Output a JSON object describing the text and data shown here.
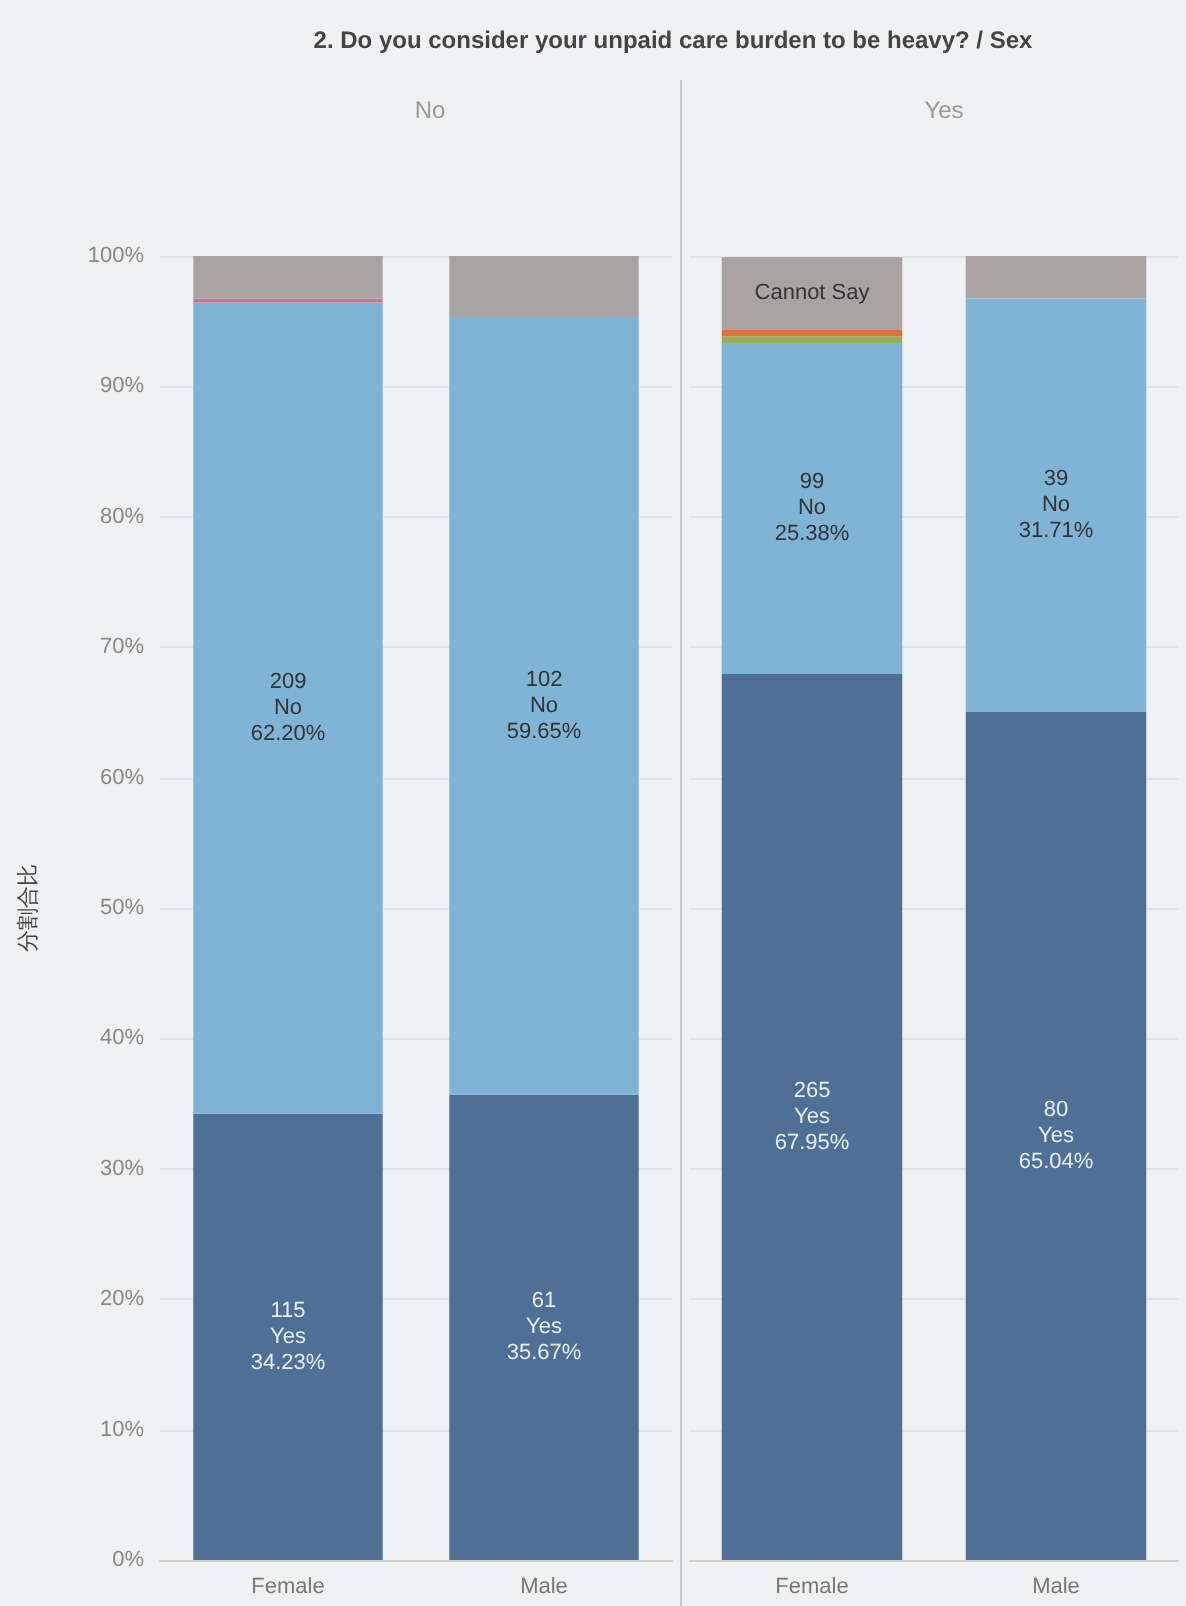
{
  "chart_data": [
    {
      "type": "bar",
      "title": "2. Do you consider your unpaid care burden to be heavy? / Sex",
      "subtitle": "No",
      "ylabel": "分割合比",
      "categories": [
        "Female",
        "Male"
      ],
      "stacked": true,
      "grid": "y",
      "ylim": [
        0,
        100
      ],
      "yticks": [
        {
          "value": 0,
          "label": "0%"
        },
        {
          "value": 10,
          "label": "10%"
        },
        {
          "value": 20,
          "label": "20%"
        },
        {
          "value": 30,
          "label": "30%"
        },
        {
          "value": 40,
          "label": "40%"
        },
        {
          "value": 50,
          "label": "50%"
        },
        {
          "value": 60,
          "label": "60%"
        },
        {
          "value": 70,
          "label": "70%"
        },
        {
          "value": 80,
          "label": "80%"
        },
        {
          "value": 90,
          "label": "90%"
        },
        {
          "value": 100,
          "label": "100%"
        }
      ],
      "series": [
        {
          "color": "#4e7096",
          "values": [
            34.23,
            35.67
          ],
          "value_labels": [
            "115\nYes\n34.23%",
            "61\nYes\n35.67%"
          ]
        },
        {
          "color": "#80b4d6",
          "values": [
            62.2,
            59.65
          ],
          "value_labels": [
            "209\nNo\n62.20%",
            "102\nNo\n59.65%"
          ]
        },
        {
          "color": "#8fb35c",
          "values": [
            0,
            0
          ]
        },
        {
          "color": "#e0703a",
          "values": [
            0,
            0
          ]
        },
        {
          "color": "#d07292",
          "values": [
            0.3,
            0
          ]
        },
        {
          "color": "#aba3a3",
          "values": [
            3.3,
            4.7
          ]
        }
      ]
    },
    {
      "type": "bar",
      "subtitle": "Yes",
      "categories": [
        "Female",
        "Male"
      ],
      "stacked": true,
      "grid": "y",
      "ylim": [
        0,
        100
      ],
      "tick_labels": "x",
      "yticks": [
        {
          "value": 0,
          "label": null
        },
        {
          "value": 10,
          "label": null
        },
        {
          "value": 20,
          "label": null
        },
        {
          "value": 30,
          "label": null
        },
        {
          "value": 40,
          "label": null
        },
        {
          "value": 50,
          "label": null
        },
        {
          "value": 60,
          "label": null
        },
        {
          "value": 70,
          "label": null
        },
        {
          "value": 80,
          "label": null
        },
        {
          "value": 90,
          "label": null
        },
        {
          "value": 100,
          "label": null
        }
      ],
      "series": [
        {
          "color": "#4e7096",
          "values": [
            67.95,
            65.04
          ],
          "value_labels": [
            "265\nYes\n67.95%",
            "80\nYes\n65.04%"
          ]
        },
        {
          "color": "#80b4d6",
          "values": [
            25.38,
            31.71
          ],
          "value_labels": [
            "99\nNo\n25.38%",
            "39\nNo\n31.71%"
          ]
        },
        {
          "color": "#8fb35c",
          "values": [
            0.5,
            0
          ]
        },
        {
          "color": "#e0703a",
          "values": [
            0.5,
            0
          ]
        },
        {
          "color": "#d07292",
          "values": [
            0,
            0
          ]
        },
        {
          "color": "#aba3a3",
          "values": [
            5.6,
            3.3
          ],
          "value_labels": [
            "Cannot Say",
            null
          ]
        }
      ]
    }
  ]
}
